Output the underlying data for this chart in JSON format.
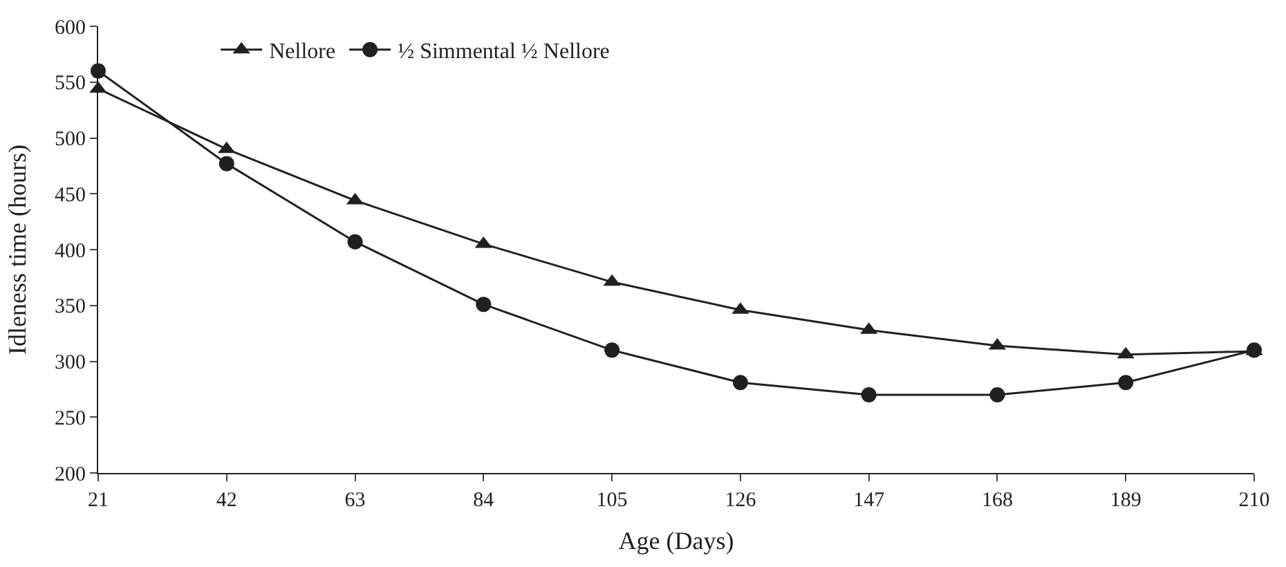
{
  "chart_data": {
    "type": "line",
    "xlabel": "Age (Days)",
    "ylabel": "Idleness time (hours)",
    "x": [
      21,
      42,
      63,
      84,
      105,
      126,
      147,
      168,
      189,
      210
    ],
    "series": [
      {
        "name": "Nellore",
        "color": "#231f20",
        "marker": "triangle",
        "values": [
          544,
          490,
          444,
          405,
          371,
          346,
          328,
          314,
          306,
          309
        ]
      },
      {
        "name": "½ Simmental ½ Nellore",
        "color": "#231f20",
        "marker": "circle",
        "values": [
          560,
          477,
          407,
          351,
          310,
          281,
          270,
          270,
          281,
          310
        ]
      }
    ],
    "xlim": [
      21,
      210
    ],
    "xticks": [
      21,
      42,
      63,
      84,
      105,
      126,
      147,
      168,
      189,
      210
    ],
    "ylim": [
      200,
      600
    ],
    "yticks": [
      200,
      250,
      300,
      350,
      400,
      450,
      500,
      550,
      600
    ],
    "legend": "top left",
    "line_style": "solid"
  }
}
